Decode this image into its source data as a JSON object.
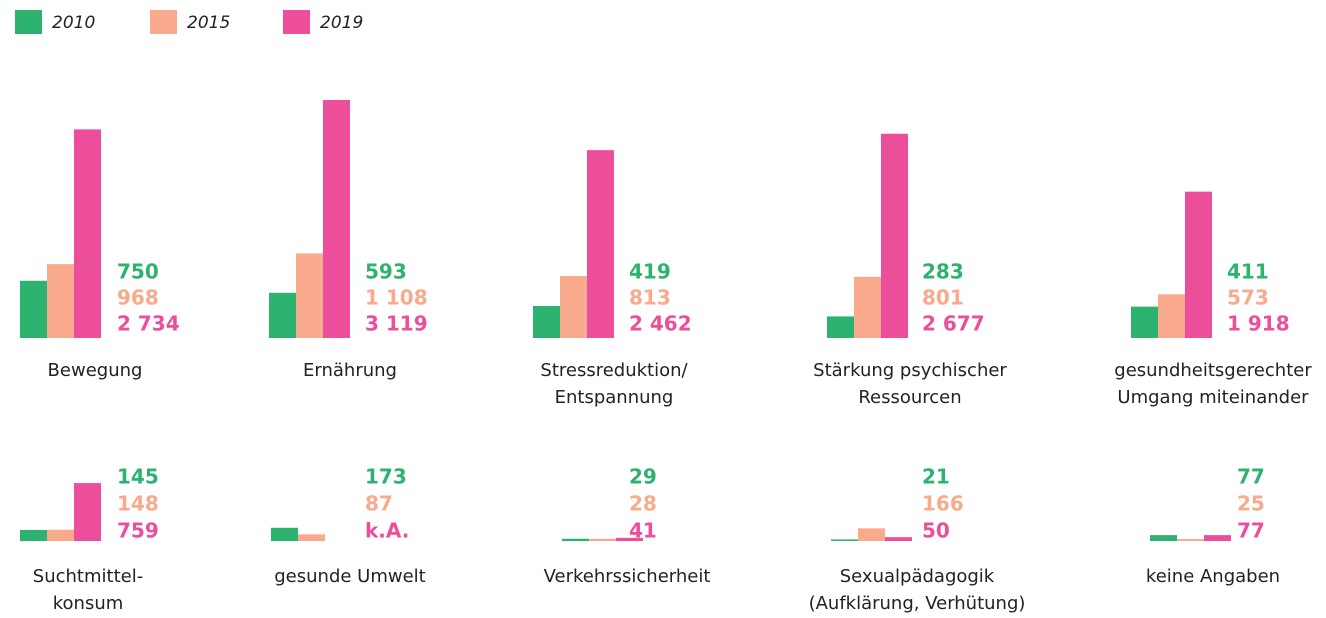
{
  "chart_data": {
    "type": "bar",
    "categories": [
      "Bewegung",
      "Ernährung",
      "Stressreduktion/\nEntspannung",
      "Stärkung psychischer\nRessourcen",
      "gesundheitsgerechter\nUmgang miteinander",
      "Suchtmittel-\nkonsum",
      "gesunde Umwelt",
      "Verkehrssicherheit",
      "Sexualpädagogik\n(Aufklärung, Verhütung)",
      "keine Angaben"
    ],
    "series": [
      {
        "name": "2010",
        "color": "#2db36f",
        "values": [
          750,
          593,
          419,
          283,
          411,
          145,
          173,
          29,
          21,
          77
        ]
      },
      {
        "name": "2015",
        "color": "#f9aa8c",
        "values": [
          968,
          1108,
          813,
          801,
          573,
          148,
          87,
          28,
          166,
          25
        ],
        "value_labels": [
          "968",
          "1 108",
          "813",
          "801",
          "573",
          "148",
          "87",
          "28",
          "166",
          "25"
        ]
      },
      {
        "name": "2019",
        "color": "#ec4e9c",
        "values": [
          2734,
          3119,
          2462,
          2677,
          1918,
          759,
          null,
          41,
          50,
          77
        ],
        "value_labels": [
          "2 734",
          "3 119",
          "2 462",
          "2 677",
          "1 918",
          "759",
          "k.A.",
          "41",
          "50",
          "77"
        ]
      }
    ],
    "legend": "top-left"
  }
}
